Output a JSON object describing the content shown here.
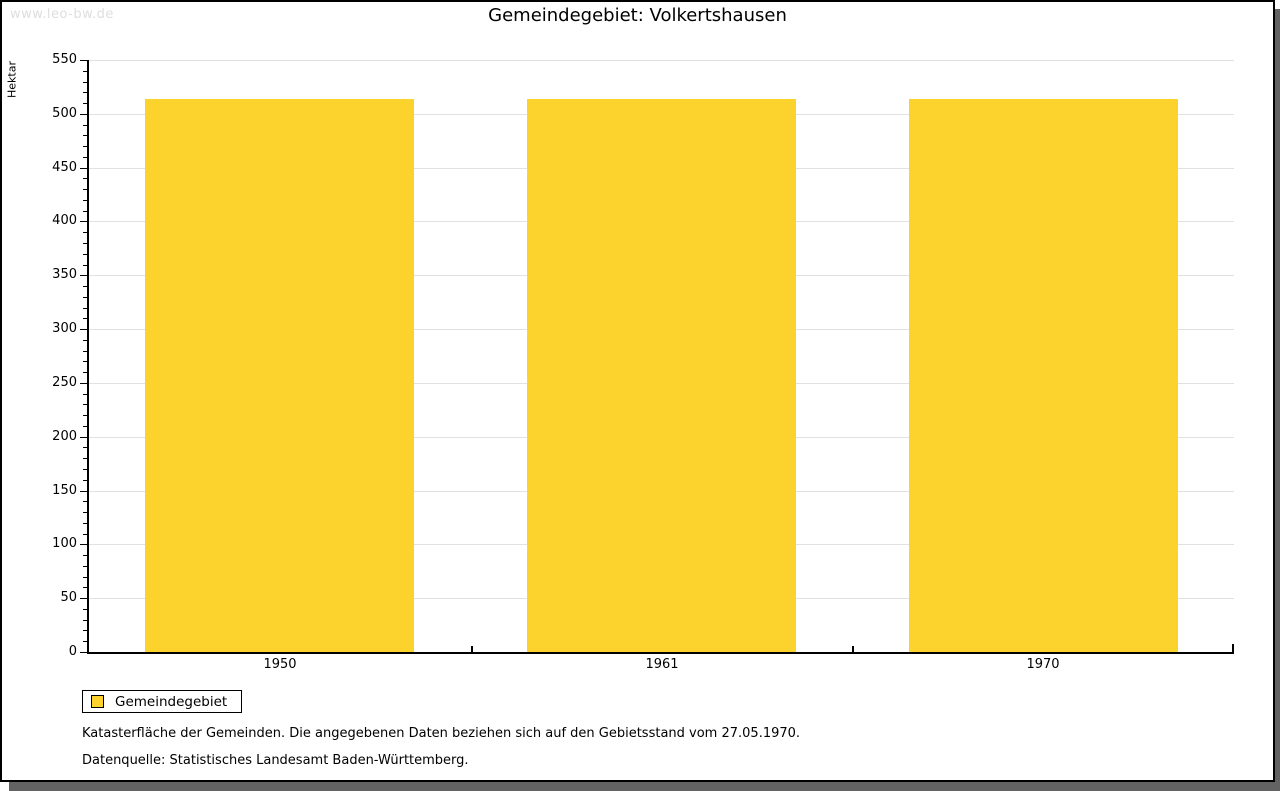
{
  "watermark": "www.leo-bw.de",
  "chart_data": {
    "type": "bar",
    "title": "Gemeindegebiet: Volkertshausen",
    "categories": [
      "1950",
      "1961",
      "1970"
    ],
    "series": [
      {
        "name": "Gemeindegebiet",
        "values": [
          514,
          514,
          514
        ]
      }
    ],
    "xlabel": "",
    "ylabel": "Hektar",
    "ylim": [
      0,
      550
    ],
    "y_major_step": 50,
    "y_minor_step": 10,
    "y_tick_labels": [
      "0",
      "50",
      "100",
      "150",
      "200",
      "250",
      "300",
      "350",
      "400",
      "450",
      "500",
      "550"
    ],
    "grid": "horizontal-major",
    "bar_color": "#fcd32d",
    "gridline_color": "#e1e1e1",
    "legend_position": "bottom-left"
  },
  "legend": {
    "items": [
      {
        "label": "Gemeindegebiet",
        "color": "#fcd32d"
      }
    ]
  },
  "footnotes": [
    "Katasterfläche der Gemeinden. Die angegebenen Daten beziehen sich auf den Gebietsstand vom 27.05.1970.",
    "Datenquelle: Statistisches Landesamt Baden-Württemberg."
  ]
}
